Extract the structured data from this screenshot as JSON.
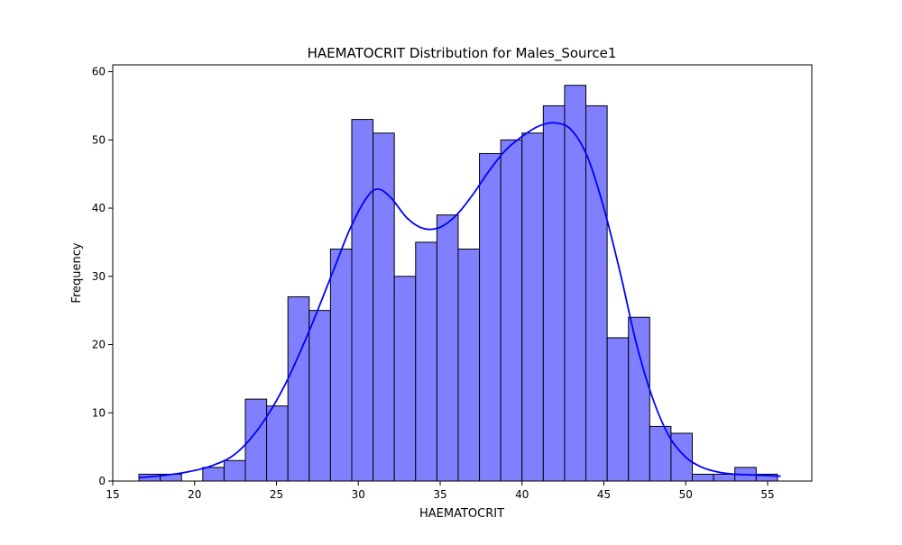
{
  "chart_data": {
    "type": "bar",
    "title": "HAEMATOCRIT Distribution for Males_Source1",
    "xlabel": "HAEMATOCRIT",
    "ylabel": "Frequency",
    "xlim": [
      15,
      57.7
    ],
    "ylim": [
      0,
      61
    ],
    "xticks": [
      15,
      20,
      25,
      30,
      35,
      40,
      45,
      50,
      55
    ],
    "yticks": [
      0,
      10,
      20,
      30,
      40,
      50,
      60
    ],
    "grid": false,
    "colors": {
      "bar_fill": "#8080ff",
      "bar_edge": "#000000",
      "kde": "#0000ff"
    },
    "bins": {
      "start": 16.6,
      "width": 1.3,
      "counts": [
        1,
        1,
        0,
        2,
        3,
        12,
        11,
        27,
        25,
        34,
        53,
        51,
        30,
        35,
        39,
        34,
        48,
        50,
        51,
        55,
        58,
        55,
        21,
        24,
        8,
        7,
        1,
        1,
        2,
        1
      ]
    },
    "kde": {
      "x": [
        16.6,
        18,
        19.5,
        21,
        22.5,
        24,
        25.5,
        27,
        28.5,
        29.5,
        30.5,
        31.2,
        32,
        33,
        34,
        35,
        36,
        37,
        38,
        39,
        40,
        41,
        42,
        43,
        44,
        45,
        46,
        47,
        48,
        49,
        50,
        51,
        52,
        53,
        54,
        55,
        55.8
      ],
      "y": [
        0.5,
        0.8,
        1.3,
        2.2,
        4,
        8,
        14,
        22,
        31,
        37,
        41.5,
        42.8,
        41.5,
        38.5,
        37,
        37.2,
        39,
        42,
        45.5,
        48.5,
        50.5,
        52,
        52.5,
        51.5,
        47.5,
        40,
        30.5,
        20,
        12,
        6.5,
        3.5,
        2,
        1.3,
        1,
        0.9,
        0.8,
        0.7
      ]
    }
  }
}
